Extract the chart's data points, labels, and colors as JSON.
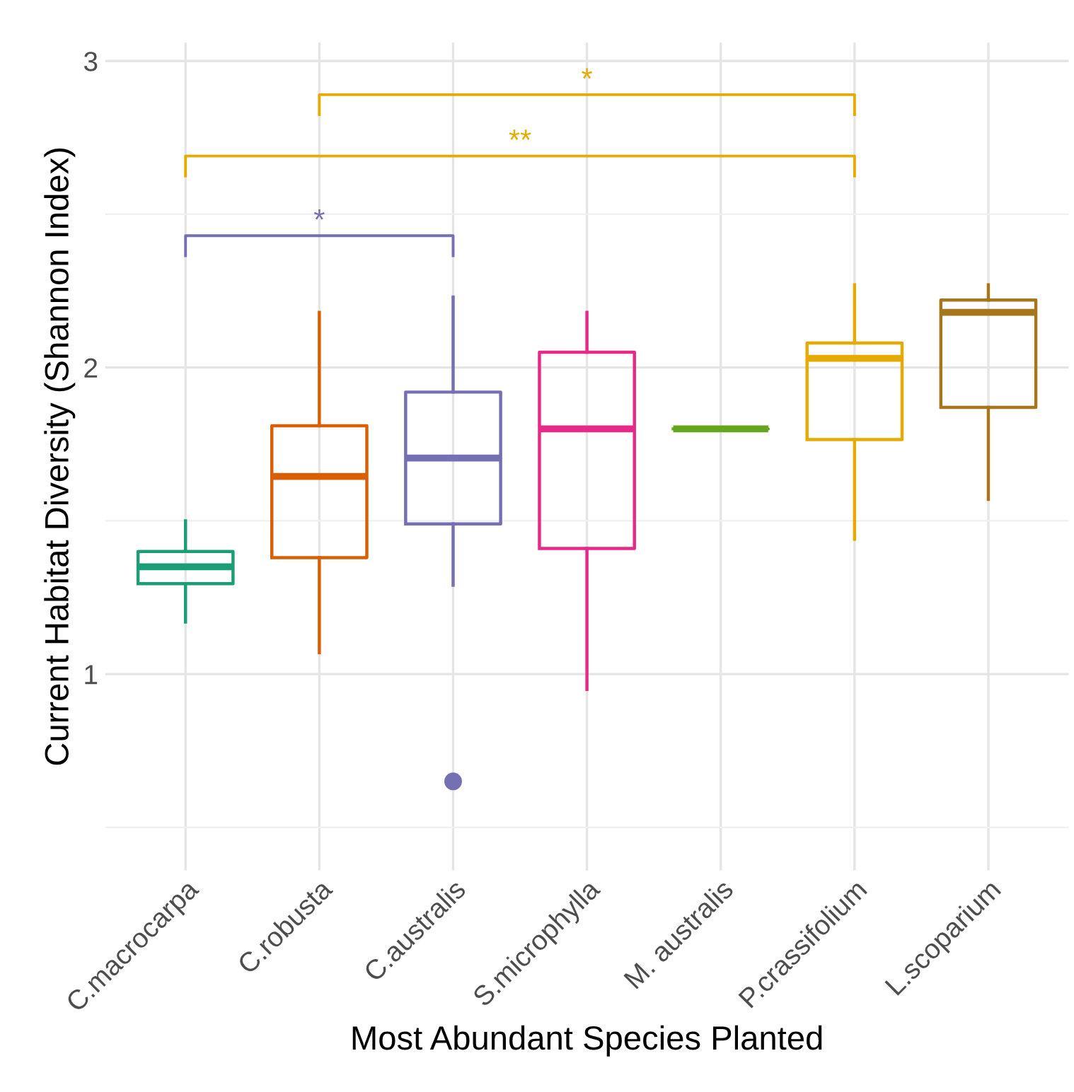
{
  "chart_data": {
    "type": "box",
    "xlabel": "Most Abundant Species Planted",
    "ylabel": "Current Habitat Diversity (Shannon Index)",
    "categories": [
      "C.macrocarpa",
      "C.robusta",
      "C.australis",
      "S.microphylla",
      "M. australis",
      "P.crassifolium",
      "L.scoparium"
    ],
    "colors": [
      "#1b9e77",
      "#d95f02",
      "#7570b3",
      "#e7298a",
      "#66a61e",
      "#e6ab02",
      "#a6761d"
    ],
    "boxes": [
      {
        "low": 1.17,
        "q1": 1.295,
        "median": 1.35,
        "q3": 1.4,
        "high": 1.5
      },
      {
        "low": 1.07,
        "q1": 1.38,
        "median": 1.645,
        "q3": 1.81,
        "high": 2.18
      },
      {
        "low": 1.29,
        "q1": 1.49,
        "median": 1.705,
        "q3": 1.92,
        "high": 2.23,
        "outliers": [
          0.65
        ]
      },
      {
        "low": 0.95,
        "q1": 1.41,
        "median": 1.8,
        "q3": 2.05,
        "high": 2.18
      },
      {
        "low": 1.8,
        "q1": 1.8,
        "median": 1.8,
        "q3": 1.8,
        "high": 1.8
      },
      {
        "low": 1.44,
        "q1": 1.765,
        "median": 2.03,
        "q3": 2.08,
        "high": 2.27
      },
      {
        "low": 1.57,
        "q1": 1.87,
        "median": 2.18,
        "q3": 2.22,
        "high": 2.27
      }
    ],
    "ylim": [
      0.36,
      3.06
    ],
    "yticks": [
      1,
      2,
      3
    ],
    "grid": true,
    "annotations": [
      "*",
      "**",
      "*"
    ]
  }
}
